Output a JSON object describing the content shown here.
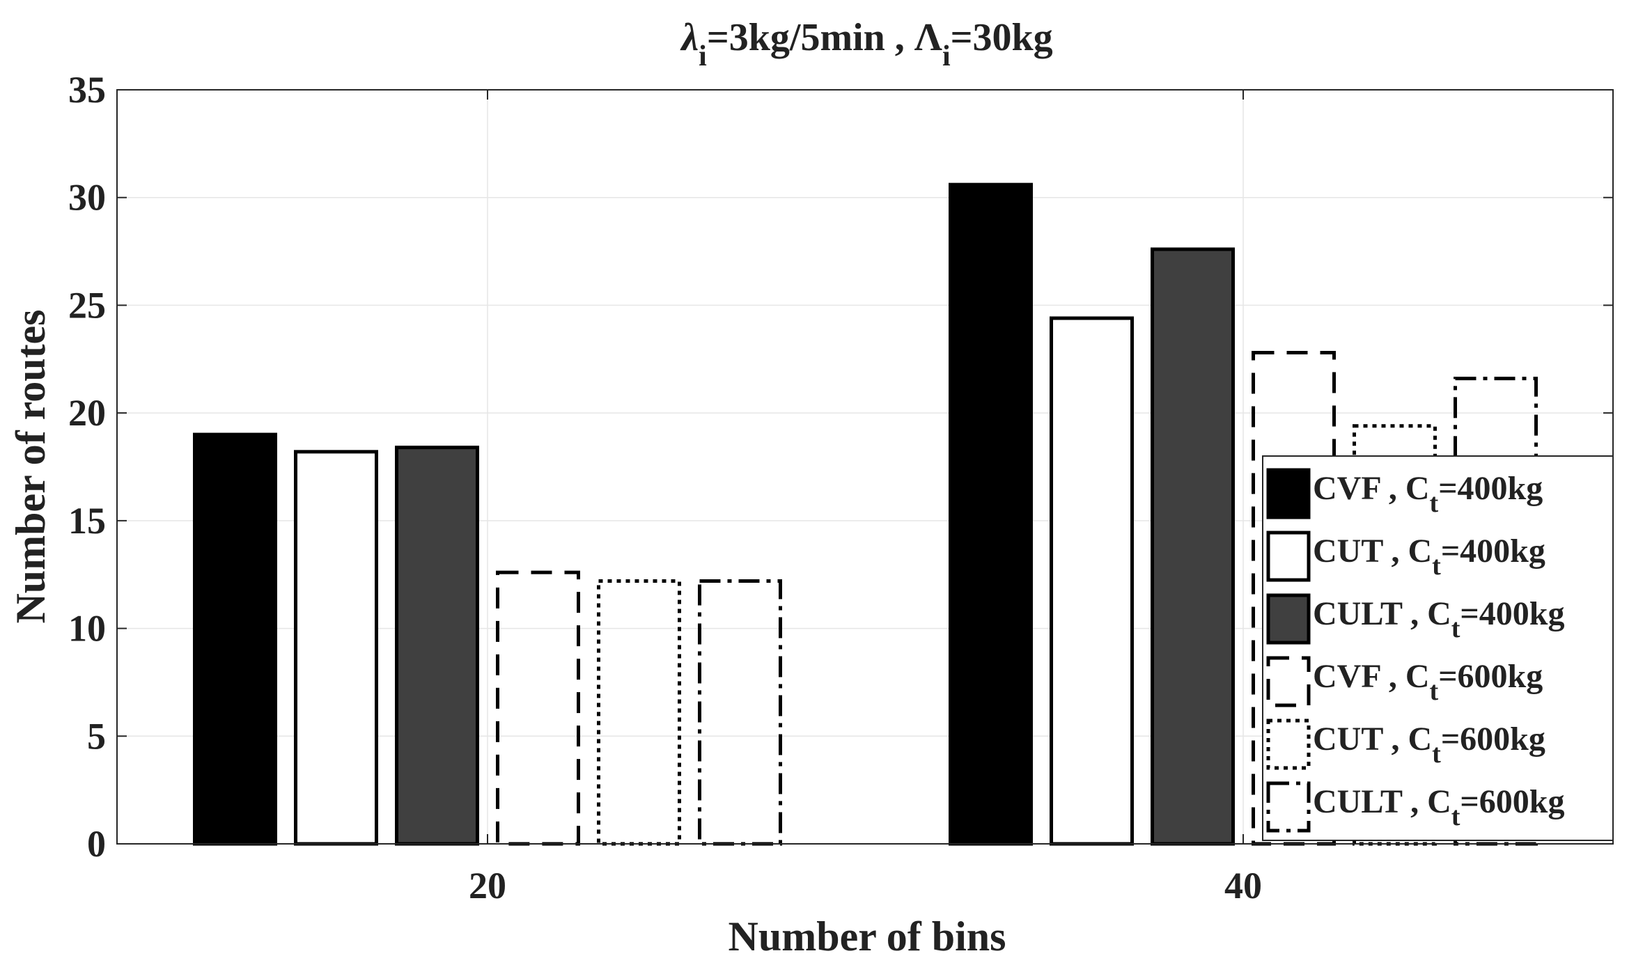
{
  "chart_data": {
    "type": "bar",
    "title": {
      "parts": [
        {
          "t": "λ",
          "italic": true
        },
        {
          "t": "i",
          "sub": true
        },
        {
          "t": "=3kg/5min , Λ"
        },
        {
          "t": "i",
          "sub": true
        },
        {
          "t": "=30kg"
        }
      ]
    },
    "xlabel": "Number of bins",
    "ylabel": "Number of routes",
    "categories": [
      "20",
      "40"
    ],
    "ylim": [
      0,
      35
    ],
    "yticks": [
      "0",
      "5",
      "10",
      "15",
      "20",
      "25",
      "30",
      "35"
    ],
    "grid": true,
    "legend_position": "right",
    "series": [
      {
        "name": "CVF",
        "capacity": "=400kg",
        "style": "solid-black",
        "values": [
          19.0,
          30.6
        ]
      },
      {
        "name": "CUT",
        "capacity": "=400kg",
        "style": "solid-white",
        "values": [
          18.2,
          24.4
        ]
      },
      {
        "name": "CULT",
        "capacity": "=400kg",
        "style": "solid-gray",
        "values": [
          18.4,
          27.6
        ]
      },
      {
        "name": "CVF",
        "capacity": "=600kg",
        "style": "dashed",
        "values": [
          12.6,
          22.8
        ]
      },
      {
        "name": "CUT",
        "capacity": "=600kg",
        "style": "dotted",
        "values": [
          12.2,
          19.4
        ]
      },
      {
        "name": "CULT",
        "capacity": "=600kg",
        "style": "dashdot",
        "values": [
          12.2,
          21.6
        ]
      }
    ],
    "legend_capacity_symbol": "C",
    "legend_capacity_sub": "t"
  }
}
